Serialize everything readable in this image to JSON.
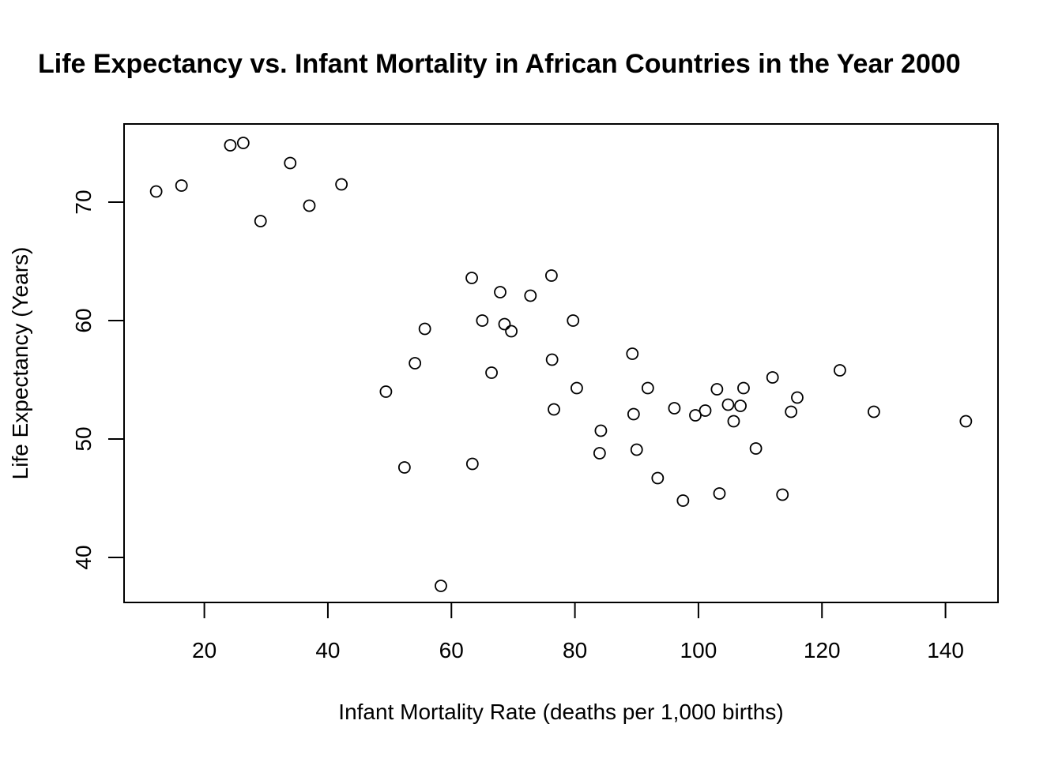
{
  "chart_data": {
    "type": "scatter",
    "title": "Life Expectancy vs. Infant Mortality in African Countries in the Year 2000",
    "xlabel": "Infant Mortality Rate (deaths per 1,000 births)",
    "ylabel": "Life Expectancy (Years)",
    "xlim": [
      7,
      148.5
    ],
    "ylim": [
      36.2,
      76.6
    ],
    "xticks": [
      20,
      40,
      60,
      80,
      100,
      120,
      140
    ],
    "yticks": [
      40,
      50,
      60,
      70
    ],
    "grid": false,
    "legend": "none",
    "marker": "open-circle",
    "points": [
      {
        "x": 12.2,
        "y": 70.9
      },
      {
        "x": 16.3,
        "y": 71.4
      },
      {
        "x": 24.2,
        "y": 74.8
      },
      {
        "x": 26.3,
        "y": 75.0
      },
      {
        "x": 29.1,
        "y": 68.4
      },
      {
        "x": 33.9,
        "y": 73.3
      },
      {
        "x": 37.0,
        "y": 69.7
      },
      {
        "x": 42.2,
        "y": 71.5
      },
      {
        "x": 49.4,
        "y": 54.0
      },
      {
        "x": 52.4,
        "y": 47.6
      },
      {
        "x": 54.1,
        "y": 56.4
      },
      {
        "x": 55.7,
        "y": 59.3
      },
      {
        "x": 58.3,
        "y": 37.6
      },
      {
        "x": 63.3,
        "y": 63.6
      },
      {
        "x": 63.4,
        "y": 47.9
      },
      {
        "x": 65.0,
        "y": 60.0
      },
      {
        "x": 66.5,
        "y": 55.6
      },
      {
        "x": 67.9,
        "y": 62.4
      },
      {
        "x": 68.6,
        "y": 59.7
      },
      {
        "x": 69.7,
        "y": 59.1
      },
      {
        "x": 72.8,
        "y": 62.1
      },
      {
        "x": 76.2,
        "y": 63.8
      },
      {
        "x": 76.3,
        "y": 56.7
      },
      {
        "x": 76.6,
        "y": 52.5
      },
      {
        "x": 79.7,
        "y": 60.0
      },
      {
        "x": 80.3,
        "y": 54.3
      },
      {
        "x": 84.0,
        "y": 48.8
      },
      {
        "x": 84.2,
        "y": 50.7
      },
      {
        "x": 89.3,
        "y": 57.2
      },
      {
        "x": 89.5,
        "y": 52.1
      },
      {
        "x": 90.0,
        "y": 49.1
      },
      {
        "x": 91.8,
        "y": 54.3
      },
      {
        "x": 93.4,
        "y": 46.7
      },
      {
        "x": 96.1,
        "y": 52.6
      },
      {
        "x": 97.5,
        "y": 44.8
      },
      {
        "x": 99.5,
        "y": 52.0
      },
      {
        "x": 101.1,
        "y": 52.4
      },
      {
        "x": 103.0,
        "y": 54.2
      },
      {
        "x": 103.4,
        "y": 45.4
      },
      {
        "x": 104.8,
        "y": 52.9
      },
      {
        "x": 105.7,
        "y": 51.5
      },
      {
        "x": 106.8,
        "y": 52.8
      },
      {
        "x": 107.3,
        "y": 54.3
      },
      {
        "x": 109.3,
        "y": 49.2
      },
      {
        "x": 112.0,
        "y": 55.2
      },
      {
        "x": 113.6,
        "y": 45.3
      },
      {
        "x": 115.0,
        "y": 52.3
      },
      {
        "x": 116.0,
        "y": 53.5
      },
      {
        "x": 122.9,
        "y": 55.8
      },
      {
        "x": 128.4,
        "y": 52.3
      },
      {
        "x": 143.3,
        "y": 51.5
      }
    ]
  }
}
